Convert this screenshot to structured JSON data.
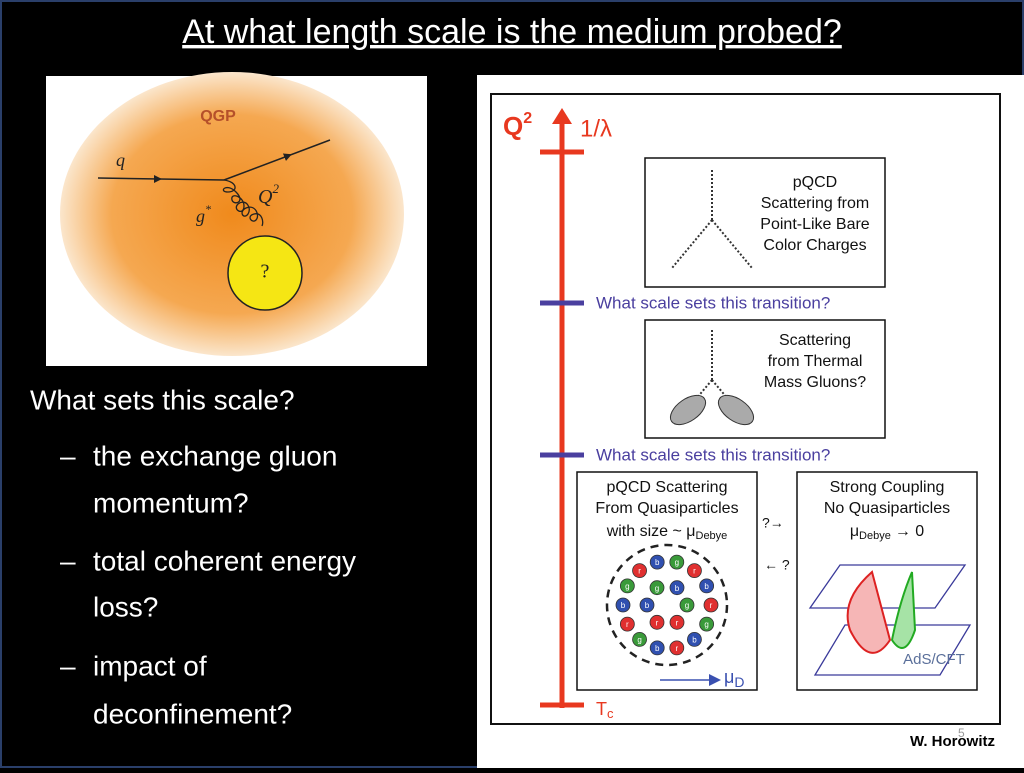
{
  "title": "At what length scale is the medium probed?",
  "left_figure": {
    "label": "QGP",
    "incoming": "q",
    "gluon": "g",
    "gluon_superscript": "*",
    "momentum": "Q",
    "momentum_superscript": "2",
    "unknown": "?"
  },
  "bullets": {
    "heading": "What sets this scale?",
    "marker": "–",
    "items": [
      [
        "the exchange gluon",
        "momentum?"
      ],
      [
        "total coherent energy",
        "loss?"
      ],
      [
        "impact of",
        "deconfinement?"
      ]
    ]
  },
  "right_figure": {
    "axis_label": "Q",
    "axis_superscript": "2",
    "scale_label": "1/λ",
    "transitions": [
      "What scale sets this transition?",
      "What scale sets this transition?"
    ],
    "box1": [
      "pQCD",
      "Scattering from",
      "Point-Like Bare",
      "Color Charges"
    ],
    "box2": [
      "Scattering",
      "from Thermal",
      "Mass Gluons?"
    ],
    "box3": {
      "lines": [
        "pQCD Scattering",
        "From Quasiparticles"
      ],
      "size_text": "with size ~ μ",
      "size_subscript": "Debye"
    },
    "box4": {
      "lines": [
        "Strong Coupling",
        "No Quasiparticles"
      ],
      "mu": "μ",
      "mu_subscript": "Debye",
      "limit": "→ 0"
    },
    "forward": "?→",
    "backward": "← ?",
    "debye_label": "μ",
    "debye_subscript": "D",
    "ads_label": "AdS/CFT",
    "tc_label": "T",
    "tc_subscript": "c",
    "particles": [
      "r",
      "g",
      "b",
      "r",
      "b",
      "g",
      "r",
      "b",
      "g",
      "r",
      "b",
      "g",
      "r",
      "b",
      "g",
      "r",
      "r",
      "b",
      "g",
      "b"
    ]
  },
  "footer": {
    "author": "W. Horowitz",
    "page": "5"
  }
}
